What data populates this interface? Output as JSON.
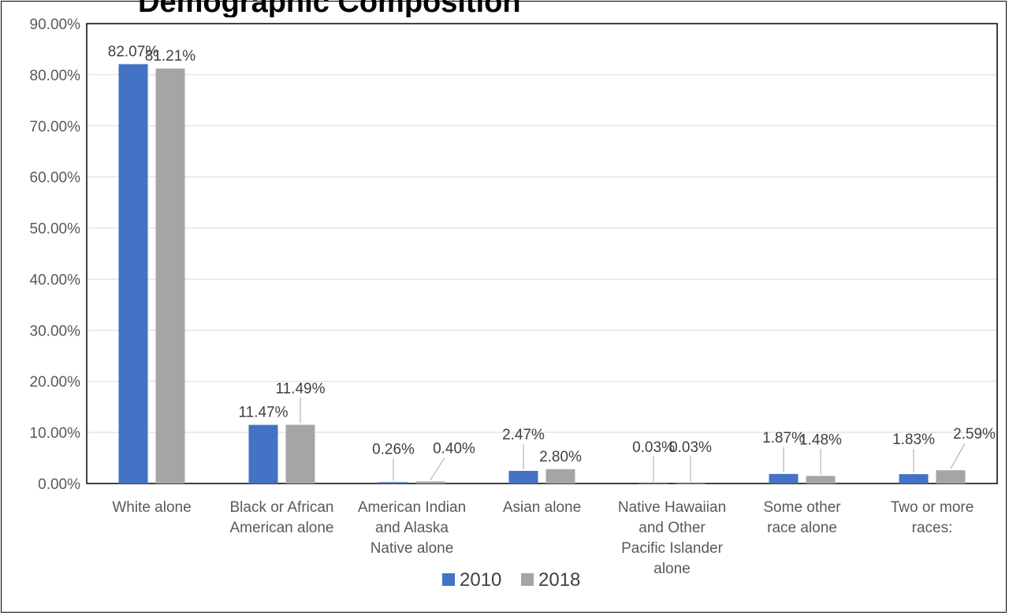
{
  "chart_data": {
    "type": "bar",
    "title": "Demographic Composition",
    "categories": [
      [
        "White alone"
      ],
      [
        "Black or African",
        "American alone"
      ],
      [
        "American Indian",
        "and Alaska",
        "Native alone"
      ],
      [
        "Asian alone"
      ],
      [
        "Native Hawaiian",
        "and Other",
        "Pacific Islander",
        "alone"
      ],
      [
        "Some other",
        "race alone"
      ],
      [
        "Two or more",
        "races:"
      ]
    ],
    "series": [
      {
        "name": "2010",
        "color": "#4472c4",
        "values": [
          82.07,
          11.47,
          0.26,
          2.47,
          0.03,
          1.87,
          1.83
        ],
        "labels": [
          "82.07%",
          "11.47%",
          "0.26%",
          "2.47%",
          "0.03%",
          "1.87%",
          "1.83%"
        ]
      },
      {
        "name": "2018",
        "color": "#a5a5a5",
        "values": [
          81.21,
          11.49,
          0.4,
          2.8,
          0.03,
          1.48,
          2.59
        ],
        "labels": [
          "81.21%",
          "11.49%",
          "0.40%",
          "2.80%",
          "0.03%",
          "1.48%",
          "2.59%"
        ]
      }
    ],
    "ylim": [
      0,
      90
    ],
    "ytick_labels": [
      "0.00%",
      "10.00%",
      "20.00%",
      "30.00%",
      "40.00%",
      "50.00%",
      "60.00%",
      "70.00%",
      "80.00%",
      "90.00%"
    ],
    "xlabel": "",
    "ylabel": "",
    "grid": true,
    "legend_position": "bottom"
  }
}
